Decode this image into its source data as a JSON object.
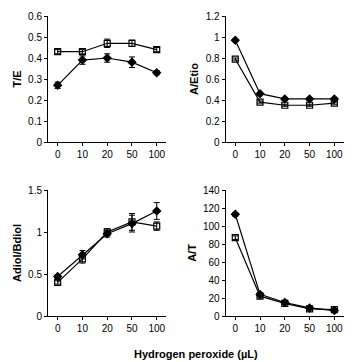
{
  "chart_data": {
    "type": "line",
    "x_label": "Hydrogen peroxide (µL)",
    "categories": [
      "0",
      "10",
      "20",
      "50",
      "100"
    ],
    "grid": false,
    "subplots": [
      {
        "y_label": "T/E",
        "ylim": [
          0,
          0.6
        ],
        "yticks": [
          0,
          0.1,
          0.2,
          0.3,
          0.4,
          0.5,
          0.6
        ],
        "series": [
          {
            "color": "#000000",
            "marker": "diamond",
            "values": [
              0.27,
              0.39,
              0.4,
              0.38,
              0.33
            ],
            "errors": [
              0.015,
              0.02,
              0.02,
              0.025,
              0.01
            ]
          },
          {
            "color": "#000000",
            "marker": "square-open",
            "values": [
              0.43,
              0.43,
              0.47,
              0.47,
              0.44
            ],
            "errors": [
              0.01,
              0.01,
              0.02,
              0.015,
              0.01
            ]
          }
        ]
      },
      {
        "y_label": "A/Etio",
        "ylim": [
          0,
          1.2
        ],
        "yticks": [
          0,
          0.2,
          0.4,
          0.6,
          0.8,
          1,
          1.2
        ],
        "series": [
          {
            "color": "#000000",
            "marker": "diamond",
            "values": [
              0.97,
              0.46,
              0.41,
              0.41,
              0.41
            ],
            "errors": [
              0.01,
              0.01,
              0.01,
              0.01,
              0.01
            ]
          },
          {
            "color": "#000000",
            "marker": "square-open",
            "values": [
              0.79,
              0.38,
              0.35,
              0.35,
              0.37
            ],
            "errors": [
              0.01,
              0.01,
              0.01,
              0.01,
              0.01
            ]
          }
        ]
      },
      {
        "y_label": "Adiol/Bdiol",
        "ylim": [
          0,
          1.5
        ],
        "yticks": [
          0,
          0.5,
          1,
          1.5
        ],
        "series": [
          {
            "color": "#000000",
            "marker": "diamond",
            "values": [
              0.47,
              0.73,
              0.98,
              1.1,
              1.25
            ],
            "errors": [
              0.02,
              0.05,
              0.04,
              0.1,
              0.1
            ]
          },
          {
            "color": "#000000",
            "marker": "square-open",
            "values": [
              0.4,
              0.68,
              1.0,
              1.12,
              1.07
            ],
            "errors": [
              0.02,
              0.05,
              0.04,
              0.1,
              0.05
            ]
          }
        ]
      },
      {
        "y_label": "A/T",
        "ylim": [
          0,
          140
        ],
        "yticks": [
          0,
          20,
          40,
          60,
          80,
          100,
          120,
          140
        ],
        "series": [
          {
            "color": "#000000",
            "marker": "diamond",
            "values": [
              113,
              24,
              15,
              9,
              6
            ],
            "errors": [
              2,
              2,
              1,
              1,
              1
            ]
          },
          {
            "color": "#000000",
            "marker": "square-open",
            "values": [
              87,
              22,
              14,
              8,
              7
            ],
            "errors": [
              2,
              2,
              1,
              1,
              1
            ]
          }
        ]
      }
    ]
  }
}
